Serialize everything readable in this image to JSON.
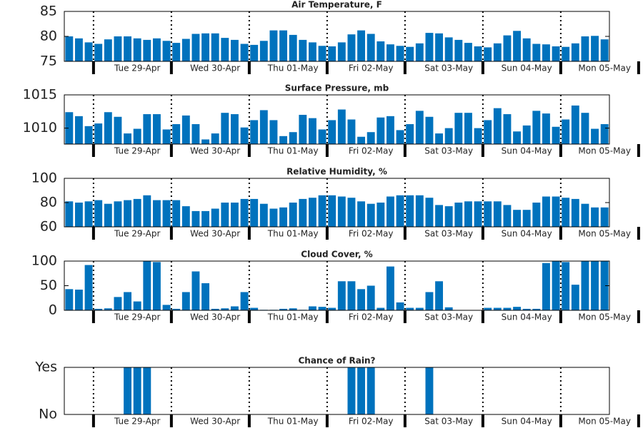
{
  "chart_data": [
    {
      "type": "bar",
      "title": "Air Temperature, F",
      "color": "#0072bd",
      "ylim": [
        75,
        85
      ],
      "yticks": [
        75,
        80,
        85
      ],
      "categories": [
        null,
        null,
        null,
        null,
        null,
        null,
        null,
        "Tue 29-Apr",
        null,
        null,
        null,
        null,
        null,
        null,
        null,
        "Wed 30-Apr",
        null,
        null,
        null,
        null,
        null,
        null,
        null,
        "Thu 01-May",
        null,
        null,
        null,
        null,
        null,
        null,
        null,
        "Fri 02-May",
        null,
        null,
        null,
        null,
        null,
        null,
        null,
        "Sat 03-May",
        null,
        null,
        null,
        null,
        null,
        null,
        null,
        "Sun 04-May",
        null,
        null,
        null,
        null,
        null,
        null,
        null,
        "Mon 05-May"
      ],
      "values": [
        80,
        79.6,
        78.8,
        78.5,
        79.4,
        80,
        80,
        79.6,
        79.3,
        79.6,
        79.1,
        78.7,
        79.5,
        80.5,
        80.6,
        80.6,
        79.7,
        79.3,
        78.5,
        78.3,
        79.1,
        81.2,
        81.2,
        80.3,
        79.3,
        78.8,
        78.1,
        78,
        78.8,
        80.4,
        81.2,
        80.5,
        79,
        78.4,
        78.1,
        77.9,
        78.6,
        80.7,
        80.6,
        79.8,
        79.3,
        78.7,
        78,
        77.8,
        78.6,
        80.2,
        81.1,
        79.6,
        78.5,
        78.4,
        78,
        77.9,
        78.6,
        80,
        80.1,
        79.4
      ]
    },
    {
      "type": "bar",
      "title": "Surface Pressure, mb",
      "color": "#0072bd",
      "ylim": [
        1007.6,
        1015
      ],
      "yticks": [
        1010,
        1015
      ],
      "categories": [
        null,
        null,
        null,
        null,
        null,
        null,
        null,
        "Tue 29-Apr",
        null,
        null,
        null,
        null,
        null,
        null,
        null,
        "Wed 30-Apr",
        null,
        null,
        null,
        null,
        null,
        null,
        null,
        "Thu 01-May",
        null,
        null,
        null,
        null,
        null,
        null,
        null,
        "Fri 02-May",
        null,
        null,
        null,
        null,
        null,
        null,
        null,
        "Sat 03-May",
        null,
        null,
        null,
        null,
        null,
        null,
        null,
        "Sun 04-May",
        null,
        null,
        null,
        null,
        null,
        null,
        null,
        "Mon 05-May"
      ],
      "values": [
        1012.4,
        1011.8,
        1010.3,
        1010.7,
        1012.4,
        1011.7,
        1009.2,
        1009.9,
        1012.1,
        1012.1,
        1009.8,
        1010.6,
        1011.9,
        1010.6,
        1008.3,
        1009.2,
        1012.3,
        1012.1,
        1010.1,
        1011.2,
        1012.7,
        1011.2,
        1008.8,
        1009.4,
        1012,
        1011.5,
        1009.8,
        1011.2,
        1012.8,
        1011.3,
        1008.7,
        1009.4,
        1011.6,
        1011.8,
        1009.7,
        1010.6,
        1012.6,
        1011.7,
        1009.2,
        1010,
        1012.3,
        1012.3,
        1010,
        1011.2,
        1013,
        1012.1,
        1009.5,
        1010.4,
        1012.6,
        1012.2,
        1010.2,
        1011.3,
        1013.4,
        1012.3,
        1009.9,
        1010.6
      ]
    },
    {
      "type": "bar",
      "title": "Relative Humidity, %",
      "color": "#0072bd",
      "ylim": [
        60,
        100
      ],
      "yticks": [
        60,
        80,
        100
      ],
      "categories": [
        null,
        null,
        null,
        null,
        null,
        null,
        null,
        "Tue 29-Apr",
        null,
        null,
        null,
        null,
        null,
        null,
        null,
        "Wed 30-Apr",
        null,
        null,
        null,
        null,
        null,
        null,
        null,
        "Thu 01-May",
        null,
        null,
        null,
        null,
        null,
        null,
        null,
        "Fri 02-May",
        null,
        null,
        null,
        null,
        null,
        null,
        null,
        "Sat 03-May",
        null,
        null,
        null,
        null,
        null,
        null,
        null,
        "Sun 04-May",
        null,
        null,
        null,
        null,
        null,
        null,
        null,
        "Mon 05-May"
      ],
      "values": [
        81,
        80,
        81,
        82,
        79,
        81,
        82,
        83,
        86,
        82,
        82,
        82,
        77,
        73,
        73,
        75,
        80,
        80,
        83,
        83,
        79,
        75,
        76,
        80,
        83,
        84,
        86,
        86,
        85,
        84,
        81,
        79,
        80,
        85,
        86,
        86,
        86,
        84,
        78,
        77,
        80,
        81,
        81,
        81,
        81,
        78,
        74,
        74,
        80,
        85,
        85,
        84,
        83,
        79,
        76,
        76
      ]
    },
    {
      "type": "bar",
      "title": "Cloud Cover, %",
      "color": "#0072bd",
      "ylim": [
        0,
        100
      ],
      "yticks": [
        0,
        50,
        100
      ],
      "categories": [
        null,
        null,
        null,
        null,
        null,
        null,
        null,
        "Tue 29-Apr",
        null,
        null,
        null,
        null,
        null,
        null,
        null,
        "Wed 30-Apr",
        null,
        null,
        null,
        null,
        null,
        null,
        null,
        "Thu 01-May",
        null,
        null,
        null,
        null,
        null,
        null,
        null,
        "Fri 02-May",
        null,
        null,
        null,
        null,
        null,
        null,
        null,
        "Sat 03-May",
        null,
        null,
        null,
        null,
        null,
        null,
        null,
        "Sun 04-May",
        null,
        null,
        null,
        null,
        null,
        null,
        null,
        "Mon 05-May"
      ],
      "values": [
        43,
        42,
        92,
        3,
        4,
        27,
        37,
        18,
        100,
        98,
        11,
        3,
        37,
        79,
        55,
        3,
        4,
        8,
        37,
        5,
        1,
        1,
        3,
        4,
        1,
        8,
        7,
        5,
        59,
        59,
        43,
        50,
        5,
        89,
        16,
        5,
        5,
        37,
        59,
        6,
        0,
        0,
        0,
        5,
        5,
        5,
        7,
        3,
        3,
        96,
        100,
        98,
        52,
        100,
        100,
        100
      ]
    },
    {
      "type": "bar",
      "title": "Chance of Rain?",
      "color": "#0072bd",
      "ylim": [
        0,
        1
      ],
      "yticks": [
        {
          "value": 0,
          "label": "No"
        },
        {
          "value": 1,
          "label": "Yes"
        }
      ],
      "categories": [
        null,
        null,
        null,
        null,
        null,
        null,
        null,
        "Tue 29-Apr",
        null,
        null,
        null,
        null,
        null,
        null,
        null,
        "Wed 30-Apr",
        null,
        null,
        null,
        null,
        null,
        null,
        null,
        "Thu 01-May",
        null,
        null,
        null,
        null,
        null,
        null,
        null,
        "Fri 02-May",
        null,
        null,
        null,
        null,
        null,
        null,
        null,
        "Sat 03-May",
        null,
        null,
        null,
        null,
        null,
        null,
        null,
        "Sun 04-May",
        null,
        null,
        null,
        null,
        null,
        null,
        null,
        "Mon 05-May"
      ],
      "values": [
        0,
        0,
        0,
        0,
        0,
        0,
        1,
        1,
        1,
        0,
        0,
        0,
        0,
        0,
        0,
        0,
        0,
        0,
        0,
        0,
        0,
        0,
        0,
        0,
        0,
        0,
        0,
        0,
        0,
        1,
        1,
        1,
        0,
        0,
        0,
        0,
        0,
        1,
        0,
        0,
        0,
        0,
        0,
        0,
        0,
        0,
        0,
        0,
        0,
        0,
        0,
        0,
        0,
        0,
        0,
        0
      ]
    }
  ]
}
